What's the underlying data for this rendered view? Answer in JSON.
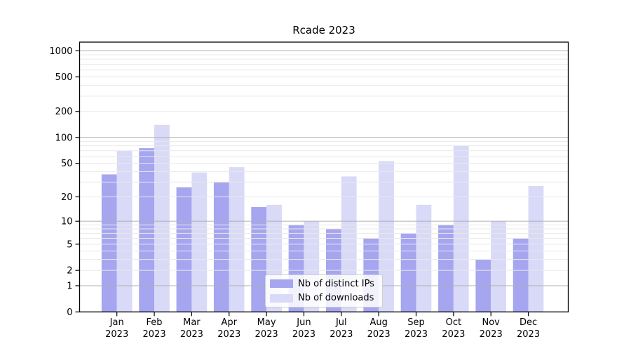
{
  "chart_data": {
    "type": "bar",
    "title": "Rcade 2023",
    "year_label": "2023",
    "categories": [
      "Jan",
      "Feb",
      "Mar",
      "Apr",
      "May",
      "Jun",
      "Jul",
      "Aug",
      "Sep",
      "Oct",
      "Nov",
      "Dec"
    ],
    "series": [
      {
        "name": "Nb of distinct IPs",
        "color": "#a5a5f0",
        "values": [
          37,
          75,
          26,
          30,
          15,
          9,
          8,
          6,
          7,
          9,
          3,
          6
        ]
      },
      {
        "name": "Nb of downloads",
        "color": "#d9d9f8",
        "values": [
          70,
          140,
          39,
          45,
          16,
          10,
          35,
          53,
          16,
          80,
          10,
          27
        ]
      }
    ],
    "xlabel": "",
    "ylabel": "",
    "yscale": "symlog",
    "yticks": [
      0,
      1,
      2,
      5,
      10,
      20,
      50,
      100,
      200,
      500,
      1000
    ],
    "ylim": [
      0,
      1260
    ],
    "grid": {
      "major": "on",
      "minor": "on"
    },
    "legend_position": "inside lower center",
    "colors": {
      "axis": "#000000",
      "tick_label": "#000000",
      "grid_major": "#b0b0b0",
      "grid_minor": "#e9e9e9",
      "background": "#ffffff"
    }
  }
}
